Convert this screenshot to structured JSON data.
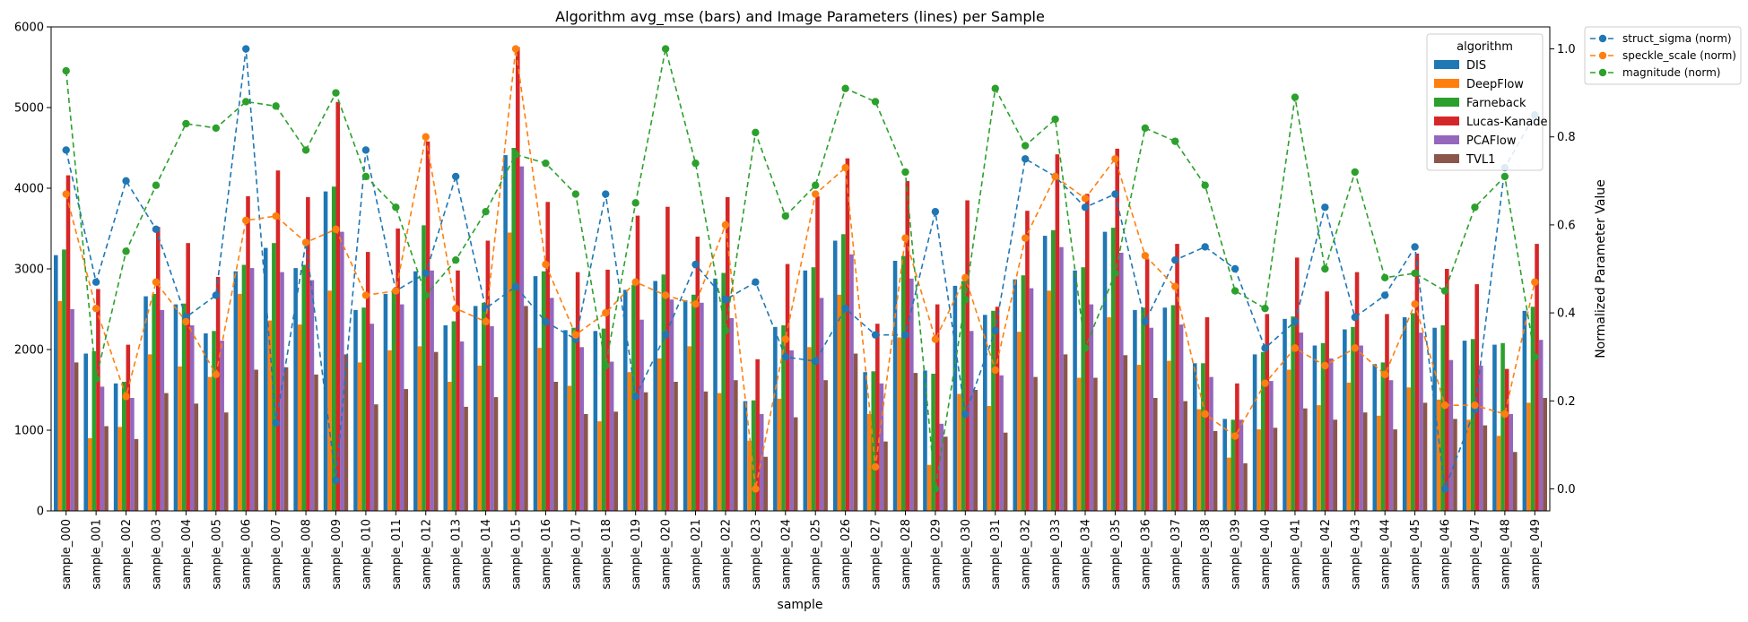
{
  "chart_data": {
    "type": "bar",
    "title": "Algorithm avg_mse (bars) and Image Parameters (lines) per Sample",
    "xlabel": "sample",
    "ylabel": "",
    "y2label": "Normalized Parameter Value",
    "ylim": [
      0,
      6000
    ],
    "y2lim": [
      -0.05,
      1.05
    ],
    "yticks": [
      "0",
      "1000",
      "2000",
      "3000",
      "4000",
      "5000",
      "6000"
    ],
    "y2ticks": [
      "0.0",
      "0.2",
      "0.4",
      "0.6",
      "0.8",
      "1.0"
    ],
    "grid": false,
    "legend_title": "algorithm",
    "legend_bars_position": "top-right",
    "legend_lines_position": "outside-top-right",
    "categories": [
      "sample_000",
      "sample_001",
      "sample_002",
      "sample_003",
      "sample_004",
      "sample_005",
      "sample_006",
      "sample_007",
      "sample_008",
      "sample_009",
      "sample_010",
      "sample_011",
      "sample_012",
      "sample_013",
      "sample_014",
      "sample_015",
      "sample_016",
      "sample_017",
      "sample_018",
      "sample_019",
      "sample_020",
      "sample_021",
      "sample_022",
      "sample_023",
      "sample_024",
      "sample_025",
      "sample_026",
      "sample_027",
      "sample_028",
      "sample_029",
      "sample_030",
      "sample_031",
      "sample_032",
      "sample_033",
      "sample_034",
      "sample_035",
      "sample_036",
      "sample_037",
      "sample_038",
      "sample_039",
      "sample_040",
      "sample_041",
      "sample_042",
      "sample_043",
      "sample_044",
      "sample_045",
      "sample_046",
      "sample_047",
      "sample_048",
      "sample_049"
    ],
    "series": [
      {
        "name": "DIS",
        "color": "#1f77b4",
        "values": [
          3170,
          1950,
          1580,
          2660,
          2560,
          2200,
          2970,
          3260,
          3010,
          3960,
          2490,
          2690,
          2970,
          2300,
          2540,
          4410,
          2910,
          2240,
          2230,
          2740,
          2850,
          2610,
          2880,
          1360,
          2280,
          2980,
          3350,
          1720,
          3100,
          1740,
          2790,
          2430,
          2870,
          3410,
          2980,
          3460,
          2490,
          2520,
          1830,
          1140,
          1940,
          2380,
          2050,
          2250,
          1820,
          2400,
          2270,
          2110,
          2060,
          2480
        ]
      },
      {
        "name": "DeepFlow",
        "color": "#ff7f0e",
        "values": [
          2600,
          900,
          1040,
          1940,
          1790,
          1660,
          2690,
          2360,
          2310,
          2730,
          1840,
          1990,
          2040,
          1600,
          1800,
          3450,
          2020,
          1550,
          1110,
          1720,
          1890,
          2040,
          1460,
          870,
          1390,
          2030,
          2680,
          1200,
          2150,
          570,
          1450,
          1300,
          2220,
          2730,
          1650,
          2400,
          1810,
          1860,
          1260,
          660,
          1010,
          1750,
          1310,
          1590,
          1180,
          1530,
          1380,
          1130,
          930,
          1340
        ]
      },
      {
        "name": "Farneback",
        "color": "#2ca02c",
        "values": [
          3240,
          1980,
          1600,
          2690,
          2570,
          2230,
          3050,
          3320,
          3050,
          4020,
          2520,
          2720,
          3540,
          2350,
          2580,
          4500,
          2970,
          2270,
          2260,
          2800,
          2930,
          2680,
          2950,
          1370,
          2300,
          3020,
          3430,
          1730,
          3160,
          1700,
          2850,
          2480,
          2920,
          3480,
          3020,
          3510,
          2520,
          2550,
          1830,
          1130,
          1970,
          2410,
          2080,
          2280,
          1840,
          2450,
          2300,
          2130,
          2080,
          2530
        ]
      },
      {
        "name": "Lucas-Kanade",
        "color": "#d62728",
        "values": [
          4160,
          2750,
          2060,
          3520,
          3320,
          2900,
          3900,
          4220,
          3890,
          5070,
          3210,
          3500,
          4580,
          2980,
          3350,
          5750,
          3830,
          2960,
          2990,
          3660,
          3770,
          3400,
          3890,
          1880,
          3060,
          3900,
          4370,
          2320,
          4090,
          2560,
          3850,
          2530,
          3720,
          4420,
          3930,
          4490,
          3120,
          3310,
          2400,
          1580,
          2440,
          3140,
          2720,
          2960,
          2440,
          3190,
          3000,
          2810,
          1760,
          3310
        ]
      },
      {
        "name": "PCAFlow",
        "color": "#9467bd",
        "values": [
          2500,
          1540,
          1400,
          2490,
          2300,
          2110,
          3010,
          2960,
          2860,
          3460,
          2320,
          2560,
          2980,
          2100,
          2290,
          4270,
          2640,
          2030,
          1850,
          2370,
          2620,
          2580,
          2390,
          1200,
          1990,
          2640,
          3180,
          1580,
          2880,
          1080,
          2230,
          1680,
          2760,
          3270,
          2560,
          3200,
          2270,
          2310,
          1660,
          1130,
          1610,
          2210,
          1890,
          2050,
          1620,
          2210,
          1870,
          1800,
          1200,
          2120
        ]
      },
      {
        "name": "TVL1",
        "color": "#8c564b",
        "values": [
          1840,
          1050,
          890,
          1460,
          1330,
          1220,
          1750,
          1780,
          1690,
          1940,
          1320,
          1510,
          1970,
          1290,
          1410,
          2540,
          1600,
          1200,
          1230,
          1470,
          1600,
          1480,
          1620,
          670,
          1160,
          1620,
          1950,
          860,
          1710,
          920,
          1500,
          970,
          1660,
          1940,
          1650,
          1930,
          1400,
          1360,
          990,
          590,
          1030,
          1270,
          1130,
          1220,
          1010,
          1340,
          1140,
          1060,
          730,
          1400
        ]
      }
    ],
    "lines": [
      {
        "name": "struct_sigma (norm)",
        "color": "#1f77b4",
        "values": [
          0.77,
          0.47,
          0.7,
          0.59,
          0.39,
          0.44,
          1.0,
          0.15,
          0.56,
          0.02,
          0.77,
          0.45,
          0.49,
          0.71,
          0.41,
          0.46,
          0.38,
          0.34,
          0.67,
          0.21,
          0.35,
          0.51,
          0.43,
          0.47,
          0.3,
          0.29,
          0.41,
          0.35,
          0.35,
          0.63,
          0.17,
          0.36,
          0.75,
          0.71,
          0.64,
          0.67,
          0.38,
          0.52,
          0.55,
          0.5,
          0.32,
          0.38,
          0.64,
          0.39,
          0.44,
          0.55,
          0.0,
          0.18,
          0.73,
          0.85
        ]
      },
      {
        "name": "speckle_scale (norm)",
        "color": "#ff7f0e",
        "values": [
          0.67,
          0.41,
          0.21,
          0.47,
          0.38,
          0.26,
          0.61,
          0.62,
          0.56,
          0.59,
          0.44,
          0.45,
          0.8,
          0.41,
          0.38,
          1.0,
          0.51,
          0.35,
          0.4,
          0.47,
          0.44,
          0.42,
          0.6,
          0.0,
          0.34,
          0.67,
          0.73,
          0.05,
          0.57,
          0.34,
          0.48,
          0.27,
          0.57,
          0.71,
          0.66,
          0.75,
          0.53,
          0.46,
          0.17,
          0.12,
          0.24,
          0.32,
          0.28,
          0.32,
          0.26,
          0.42,
          0.19,
          0.19,
          0.17,
          0.47
        ]
      },
      {
        "name": "magnitude (norm)",
        "color": "#2ca02c",
        "values": [
          0.95,
          0.25,
          0.54,
          0.69,
          0.83,
          0.82,
          0.88,
          0.87,
          0.77,
          0.9,
          0.71,
          0.64,
          0.44,
          0.52,
          0.63,
          0.76,
          0.74,
          0.67,
          0.28,
          0.65,
          1.0,
          0.74,
          0.36,
          0.81,
          0.62,
          0.69,
          0.91,
          0.88,
          0.72,
          0.0,
          0.43,
          0.91,
          0.78,
          0.84,
          0.32,
          0.49,
          0.82,
          0.79,
          0.69,
          0.45,
          0.41,
          0.89,
          0.5,
          0.72,
          0.48,
          0.49,
          0.45,
          0.64,
          0.71,
          0.3
        ]
      }
    ]
  }
}
